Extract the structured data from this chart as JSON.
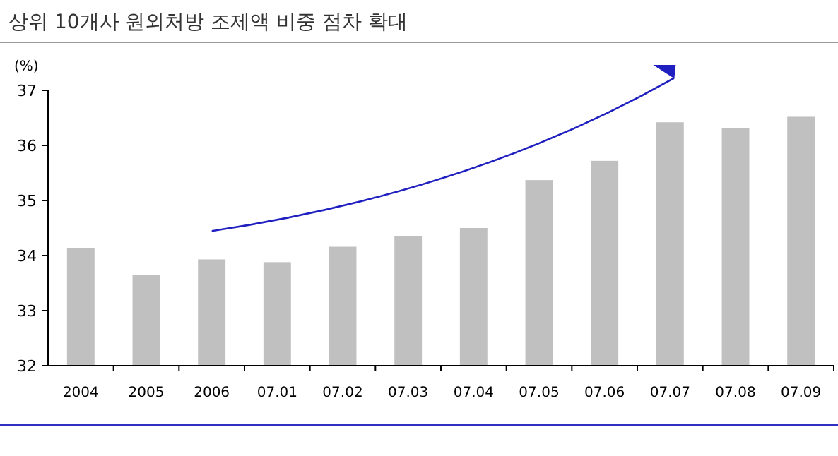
{
  "chart_data": {
    "type": "bar",
    "title": "상위 10개사 원외처방 조제액 비중 점차 확대",
    "ylabel": "(%)",
    "categories": [
      "2004",
      "2005",
      "2006",
      "07.01",
      "07.02",
      "07.03",
      "07.04",
      "07.05",
      "07.06",
      "07.07",
      "07.08",
      "07.09"
    ],
    "values": [
      34.14,
      33.65,
      33.93,
      33.88,
      34.16,
      34.35,
      34.5,
      35.37,
      35.72,
      36.42,
      36.32,
      36.52
    ],
    "color": "#c0c0c0",
    "ylim": [
      32,
      37
    ],
    "yticks": [
      32,
      33,
      34,
      35,
      36,
      37
    ],
    "grid": false
  }
}
